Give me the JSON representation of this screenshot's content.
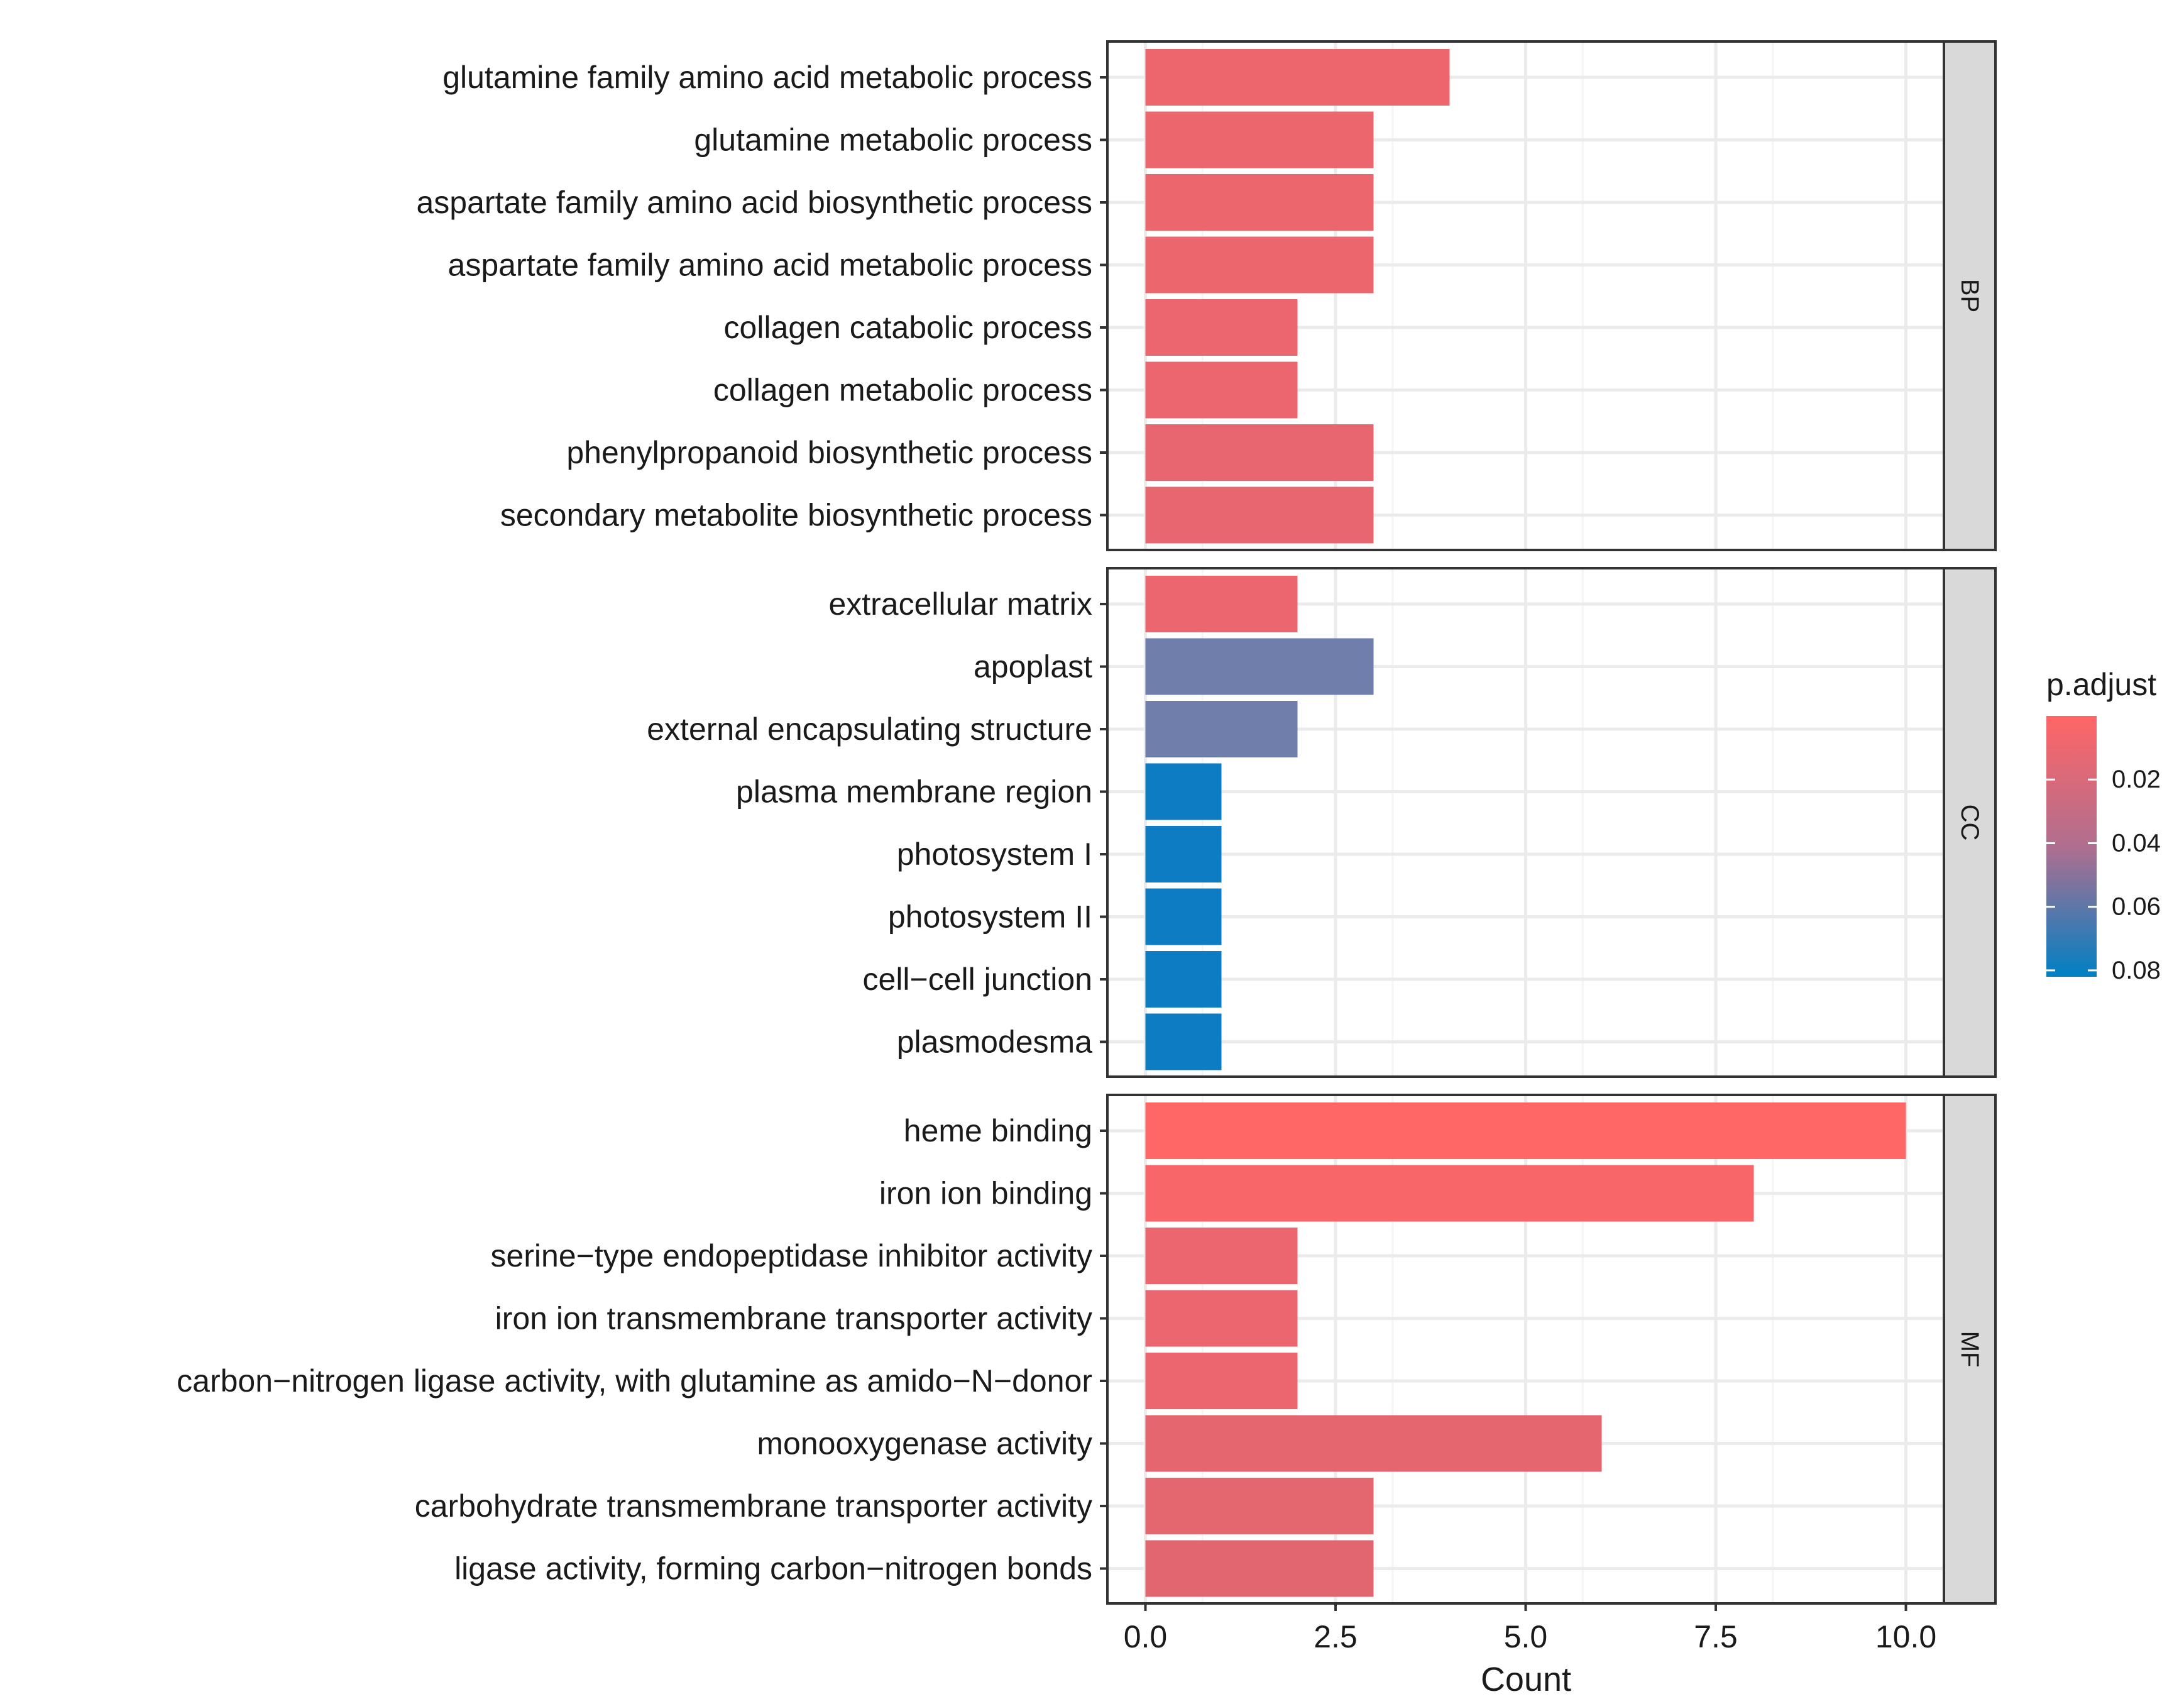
{
  "chart_data": {
    "type": "bar",
    "orientation": "horizontal",
    "xlabel": "Count",
    "xlim": [
      -0.5,
      10.5
    ],
    "x_ticks": [
      0.0,
      2.5,
      5.0,
      7.5,
      10.0
    ],
    "x_tick_labels": [
      "0.0",
      "2.5",
      "5.0",
      "7.5",
      "10.0"
    ],
    "facets": [
      {
        "name": "BP",
        "categories": [
          "glutamine family amino acid metabolic process",
          "glutamine metabolic process",
          "aspartate family amino acid biosynthetic process",
          "aspartate family amino acid metabolic process",
          "collagen catabolic process",
          "collagen metabolic process",
          "phenylpropanoid biosynthetic process",
          "secondary metabolite biosynthetic process"
        ],
        "values": [
          4,
          3,
          3,
          3,
          2,
          2,
          3,
          3
        ],
        "colors": [
          "#ED666E",
          "#EC666E",
          "#EC666E",
          "#EC666E",
          "#EB666E",
          "#EB666E",
          "#E8666F",
          "#E8666F"
        ]
      },
      {
        "name": "CC",
        "categories": [
          "extracellular matrix",
          "apoplast",
          "external encapsulating structure",
          "plasma membrane region",
          "photosystem I",
          "photosystem II",
          "cell−cell junction",
          "plasmodesma"
        ],
        "values": [
          2,
          3,
          2,
          1,
          1,
          1,
          1,
          1
        ],
        "colors": [
          "#EB666E",
          "#6F7EAB",
          "#6F7EAB",
          "#0E7CC3",
          "#0E7CC3",
          "#0E7CC3",
          "#0E7CC3",
          "#0E7CC3"
        ]
      },
      {
        "name": "MF",
        "categories": [
          "heme binding",
          "iron ion binding",
          "serine−type endopeptidase inhibitor activity",
          "iron ion transmembrane transporter activity",
          "carbon−nitrogen ligase activity, with glutamine as amido−N−donor",
          "monooxygenase activity",
          "carbohydrate transmembrane transporter activity",
          "ligase activity, forming carbon−nitrogen bonds"
        ],
        "values": [
          10,
          8,
          2,
          2,
          2,
          6,
          3,
          3
        ],
        "colors": [
          "#FF6666",
          "#F8666A",
          "#EB666E",
          "#EB666E",
          "#EB666E",
          "#E6666F",
          "#E4666F",
          "#E26670"
        ]
      }
    ],
    "legend": {
      "title": "p.adjust",
      "position": "right",
      "tick_labels": [
        "0.02",
        "0.04",
        "0.06",
        "0.08"
      ],
      "tick_values": [
        0.02,
        0.04,
        0.06,
        0.08
      ],
      "range": [
        0.0,
        0.082
      ],
      "color_low": "#FF6666",
      "color_high": "#0080C4"
    },
    "colors": {
      "strip_fill": "#D9D9D9",
      "grid_major": "#EBEBEB",
      "grid_minor": "#F5F5F5",
      "panel_border": "#333333",
      "text": "#1A1A1A"
    }
  }
}
